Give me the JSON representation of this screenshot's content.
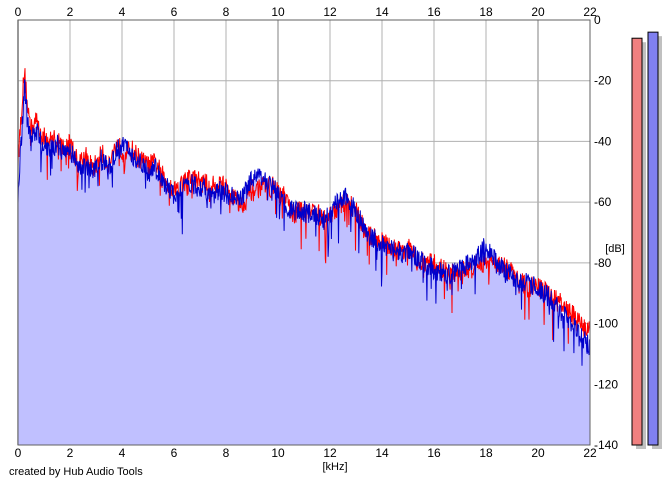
{
  "chart_data": {
    "type": "area",
    "title": "",
    "xlabel": "[kHz]",
    "ylabel": "[dB]",
    "xlim": [
      0,
      22
    ],
    "ylim": [
      -140,
      0
    ],
    "x_ticks": [
      0,
      2,
      4,
      6,
      8,
      10,
      12,
      14,
      16,
      18,
      20,
      22
    ],
    "y_ticks": [
      0,
      -20,
      -40,
      -60,
      -80,
      -100,
      -120,
      -140
    ],
    "grid": true,
    "series": [
      {
        "color": "#ff0000",
        "points": [
          [
            0.0,
            -46
          ],
          [
            0.1,
            -34
          ],
          [
            0.2,
            -22
          ],
          [
            0.25,
            -17
          ],
          [
            0.35,
            -27
          ],
          [
            0.5,
            -36
          ],
          [
            0.7,
            -33
          ],
          [
            0.9,
            -38
          ],
          [
            1.2,
            -40
          ],
          [
            1.5,
            -39
          ],
          [
            1.8,
            -43
          ],
          [
            2.0,
            -40
          ],
          [
            2.3,
            -47
          ],
          [
            2.6,
            -45
          ],
          [
            2.9,
            -49
          ],
          [
            3.2,
            -44
          ],
          [
            3.5,
            -47
          ],
          [
            3.8,
            -41
          ],
          [
            4.1,
            -44
          ],
          [
            4.4,
            -43
          ],
          [
            4.7,
            -46
          ],
          [
            5.0,
            -48
          ],
          [
            5.3,
            -47
          ],
          [
            5.6,
            -52
          ],
          [
            6.0,
            -56
          ],
          [
            6.3,
            -54
          ],
          [
            6.6,
            -52
          ],
          [
            7.0,
            -53
          ],
          [
            7.4,
            -55
          ],
          [
            7.8,
            -54
          ],
          [
            8.2,
            -57
          ],
          [
            8.6,
            -61
          ],
          [
            9.0,
            -56
          ],
          [
            9.4,
            -55
          ],
          [
            9.8,
            -55
          ],
          [
            10.2,
            -58
          ],
          [
            10.6,
            -64
          ],
          [
            11.0,
            -62
          ],
          [
            11.4,
            -63
          ],
          [
            11.8,
            -66
          ],
          [
            12.2,
            -63
          ],
          [
            12.6,
            -60
          ],
          [
            13.0,
            -62
          ],
          [
            13.4,
            -71
          ],
          [
            13.8,
            -72
          ],
          [
            14.2,
            -74
          ],
          [
            14.6,
            -76
          ],
          [
            15.0,
            -75
          ],
          [
            15.4,
            -80
          ],
          [
            15.8,
            -80
          ],
          [
            16.2,
            -81
          ],
          [
            16.6,
            -84
          ],
          [
            17.0,
            -83
          ],
          [
            17.4,
            -82
          ],
          [
            17.8,
            -81
          ],
          [
            18.0,
            -79
          ],
          [
            18.4,
            -80
          ],
          [
            18.8,
            -82
          ],
          [
            19.2,
            -85
          ],
          [
            19.6,
            -88
          ],
          [
            20.0,
            -88
          ],
          [
            20.4,
            -90
          ],
          [
            20.8,
            -93
          ],
          [
            21.2,
            -96
          ],
          [
            21.6,
            -100
          ],
          [
            22.0,
            -103
          ]
        ]
      },
      {
        "color": "#0000cc",
        "points": [
          [
            0.0,
            -57
          ],
          [
            0.1,
            -42
          ],
          [
            0.2,
            -30
          ],
          [
            0.25,
            -20
          ],
          [
            0.35,
            -32
          ],
          [
            0.5,
            -40
          ],
          [
            0.7,
            -36
          ],
          [
            0.9,
            -41
          ],
          [
            1.2,
            -42
          ],
          [
            1.5,
            -41
          ],
          [
            1.8,
            -44
          ],
          [
            2.0,
            -43
          ],
          [
            2.3,
            -48
          ],
          [
            2.6,
            -47
          ],
          [
            2.9,
            -50
          ],
          [
            3.2,
            -46
          ],
          [
            3.5,
            -49
          ],
          [
            3.8,
            -43
          ],
          [
            4.1,
            -41
          ],
          [
            4.4,
            -45
          ],
          [
            4.7,
            -47
          ],
          [
            5.0,
            -50
          ],
          [
            5.3,
            -49
          ],
          [
            5.6,
            -54
          ],
          [
            6.0,
            -58
          ],
          [
            6.3,
            -56
          ],
          [
            6.6,
            -54
          ],
          [
            7.0,
            -55
          ],
          [
            7.4,
            -57
          ],
          [
            7.8,
            -56
          ],
          [
            8.2,
            -58
          ],
          [
            8.6,
            -58
          ],
          [
            9.0,
            -53
          ],
          [
            9.4,
            -52
          ],
          [
            9.8,
            -54
          ],
          [
            10.2,
            -60
          ],
          [
            10.6,
            -63
          ],
          [
            11.0,
            -63
          ],
          [
            11.4,
            -64
          ],
          [
            11.8,
            -66
          ],
          [
            12.2,
            -61
          ],
          [
            12.6,
            -58
          ],
          [
            13.0,
            -63
          ],
          [
            13.4,
            -70
          ],
          [
            13.8,
            -73
          ],
          [
            14.2,
            -75
          ],
          [
            14.6,
            -77
          ],
          [
            15.0,
            -76
          ],
          [
            15.4,
            -79
          ],
          [
            15.8,
            -81
          ],
          [
            16.2,
            -83
          ],
          [
            16.6,
            -84
          ],
          [
            17.0,
            -82
          ],
          [
            17.4,
            -80
          ],
          [
            17.8,
            -77
          ],
          [
            18.0,
            -74
          ],
          [
            18.4,
            -80
          ],
          [
            18.8,
            -83
          ],
          [
            19.2,
            -86
          ],
          [
            19.6,
            -86
          ],
          [
            20.0,
            -89
          ],
          [
            20.4,
            -91
          ],
          [
            20.8,
            -95
          ],
          [
            21.2,
            -99
          ],
          [
            21.6,
            -104
          ],
          [
            22.0,
            -108
          ]
        ]
      }
    ],
    "level_meters": [
      {
        "color": "#f08080",
        "level_db": -6
      },
      {
        "color": "#8080f0",
        "level_db": -4
      }
    ]
  },
  "credit": "created by Hub Audio Tools",
  "colors": {
    "fill": "#c0c0ff",
    "grid": "#b0b0b0",
    "axis": "#606060"
  }
}
